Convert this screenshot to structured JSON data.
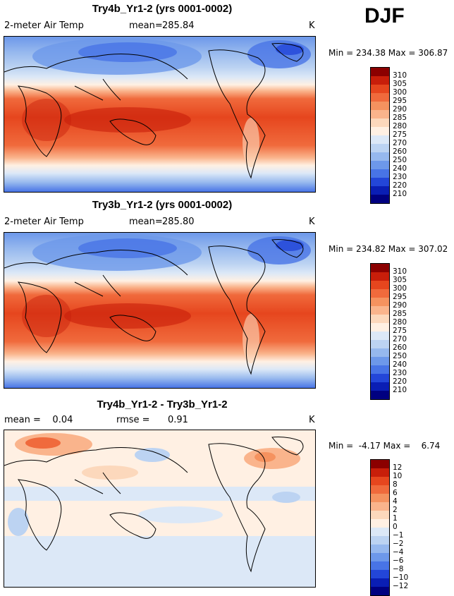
{
  "season": "DJF",
  "panels": [
    {
      "title": "Try4b_Yr1-2 (yrs 0001-0002)",
      "left_label": "2-meter Air Temp",
      "stat_label": "mean=",
      "stat_value": "285.84",
      "units": "K",
      "minmax": "Min = 234.38 Max = 306.87"
    },
    {
      "title": "Try3b_Yr1-2 (yrs 0001-0002)",
      "left_label": "2-meter Air Temp",
      "stat_label": "mean=",
      "stat_value": "285.80",
      "units": "K",
      "minmax": "Min = 234.82 Max = 307.02"
    },
    {
      "title": "Try4b_Yr1-2 - Try3b_Yr1-2",
      "left_label": "mean =    0.04",
      "stat_label": "rmse =",
      "stat_value": "0.91",
      "units": "K",
      "minmax": "Min =  -4.17 Max =    6.74"
    }
  ],
  "colorbar_abs": {
    "levels": [
      "310",
      "305",
      "300",
      "295",
      "290",
      "285",
      "280",
      "275",
      "270",
      "260",
      "250",
      "240",
      "230",
      "220",
      "210"
    ],
    "colors": [
      "#8b0000",
      "#c81e0a",
      "#e6461e",
      "#f06a3c",
      "#f5925f",
      "#fab48c",
      "#fcd8bc",
      "#fff0e3",
      "#dce8f7",
      "#bcd3f2",
      "#96b8ee",
      "#6d98ea",
      "#4874e6",
      "#2346d8",
      "#0a1eb4",
      "#000080"
    ]
  },
  "colorbar_diff": {
    "levels": [
      "12",
      "10",
      "8",
      "6",
      "4",
      "2",
      "1",
      "0",
      "−1",
      "−2",
      "−4",
      "−6",
      "−8",
      "−10",
      "−12"
    ],
    "colors": [
      "#8b0000",
      "#c81e0a",
      "#e6461e",
      "#f06a3c",
      "#f5925f",
      "#fab48c",
      "#fcd8bc",
      "#fff0e3",
      "#dce8f7",
      "#bcd3f2",
      "#96b8ee",
      "#6d98ea",
      "#4874e6",
      "#2346d8",
      "#0a1eb4",
      "#000080"
    ]
  }
}
